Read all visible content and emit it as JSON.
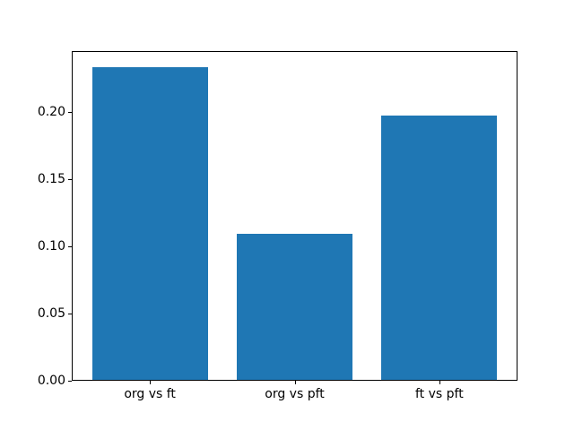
{
  "chart_data": {
    "type": "bar",
    "title": "",
    "xlabel": "",
    "ylabel": "",
    "categories": [
      "org vs ft",
      "org vs pft",
      "ft vs pft"
    ],
    "values": [
      0.233,
      0.109,
      0.197
    ],
    "bar_color": "#1f77b4",
    "background_color": "#ffffff",
    "axis_color": "#000000",
    "ylim": [
      0,
      0.245
    ],
    "xlim": [
      -0.54,
      2.54
    ],
    "bar_width": 0.8,
    "yticks": [
      {
        "value": 0.0,
        "label": "0.00"
      },
      {
        "value": 0.05,
        "label": "0.05"
      },
      {
        "value": 0.1,
        "label": "0.10"
      },
      {
        "value": 0.15,
        "label": "0.15"
      },
      {
        "value": 0.2,
        "label": "0.20"
      }
    ],
    "grid": false,
    "legend": null
  }
}
